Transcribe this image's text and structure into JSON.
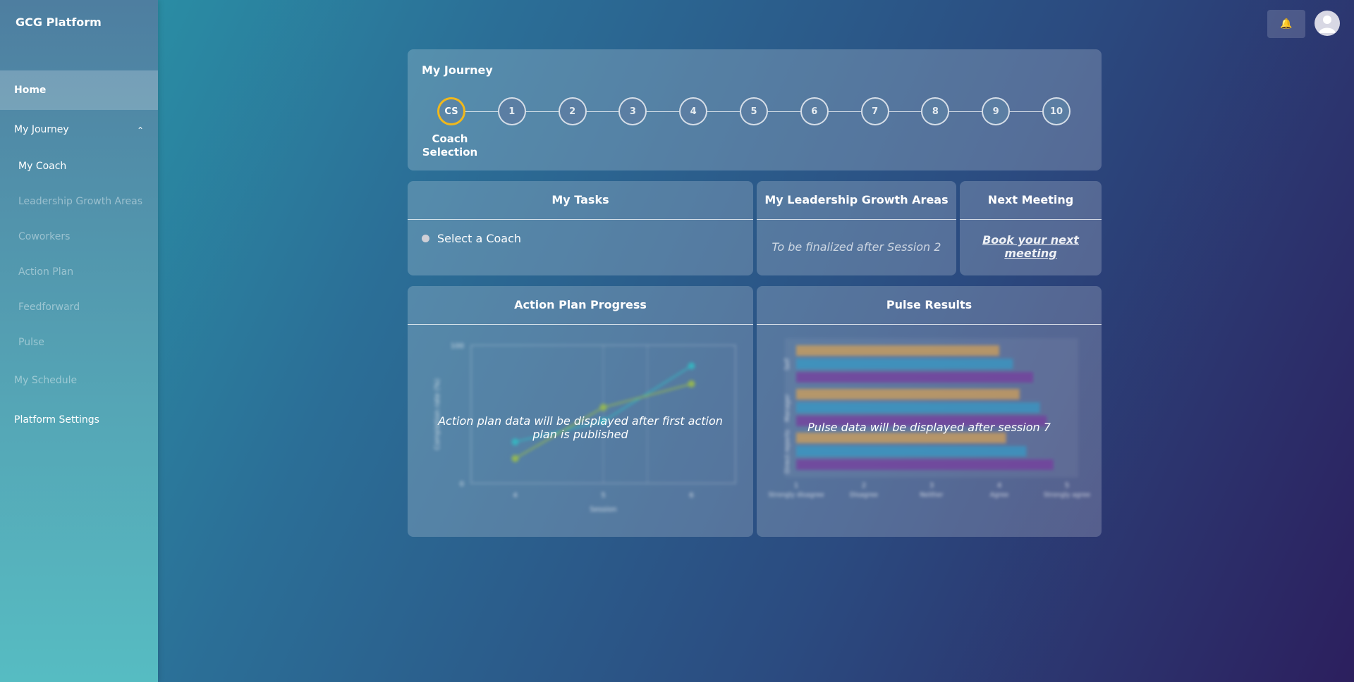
{
  "brand": "GCG Platform",
  "nav": {
    "home": "Home",
    "my_journey": "My Journey",
    "my_coach": "My Coach",
    "leadership_growth_areas": "Leadership Growth Areas",
    "coworkers": "Coworkers",
    "action_plan": "Action Plan",
    "feedforward": "Feedforward",
    "pulse": "Pulse",
    "my_schedule": "My Schedule",
    "platform_settings": "Platform Settings"
  },
  "icons": {
    "bell": "bell-icon",
    "avatar": "user-icon",
    "chevron": "chevron-up-icon"
  },
  "journey": {
    "title": "My Journey",
    "steps": [
      "CS",
      "1",
      "2",
      "3",
      "4",
      "5",
      "6",
      "7",
      "8",
      "9",
      "10"
    ],
    "current_step_label": "Coach Selection",
    "current_color": "#f0b81c"
  },
  "tasks": {
    "title": "My Tasks",
    "items": [
      "Select a Coach"
    ]
  },
  "growth": {
    "title": "My Leadership Growth Areas",
    "placeholder": "To be finalized after Session 2"
  },
  "meeting": {
    "title": "Next Meeting",
    "link": "Book your next meeting"
  },
  "action_progress": {
    "title": "Action Plan Progress",
    "message": "Action plan data will be displayed after first action plan is published",
    "chart_data": {
      "type": "line",
      "x": [
        4,
        5,
        6
      ],
      "xlabel": "Session",
      "ylabel": "Completion rate (%)",
      "ylim": [
        0,
        100
      ],
      "y_ticks": [
        "0",
        "100"
      ],
      "series": [
        {
          "values": [
            30,
            45,
            85
          ],
          "color": "#2ec4c9"
        },
        {
          "values": [
            18,
            55,
            72
          ],
          "color": "#a9c93a"
        }
      ]
    }
  },
  "pulse": {
    "title": "Pulse Results",
    "message": "Pulse data will be displayed after session 7",
    "chart_data": {
      "type": "bar",
      "orientation": "horizontal",
      "categories": [
        "Self",
        "Manager",
        "Direct reports"
      ],
      "x_ticks": [
        {
          "value": "1",
          "label": "Strongly disagree"
        },
        {
          "value": "2",
          "label": "Disagree"
        },
        {
          "value": "3",
          "label": "Neither"
        },
        {
          "value": "4",
          "label": "Agree"
        },
        {
          "value": "5",
          "label": "Strongly agree"
        }
      ],
      "xlim": [
        1,
        5
      ],
      "series": [
        {
          "values": [
            4.0,
            4.3,
            4.1
          ],
          "color": "#d5a35a"
        },
        {
          "values": [
            4.2,
            4.6,
            4.4
          ],
          "color": "#3a9cc7"
        },
        {
          "values": [
            4.5,
            4.7,
            4.8
          ],
          "color": "#7a3fa0"
        }
      ]
    }
  }
}
